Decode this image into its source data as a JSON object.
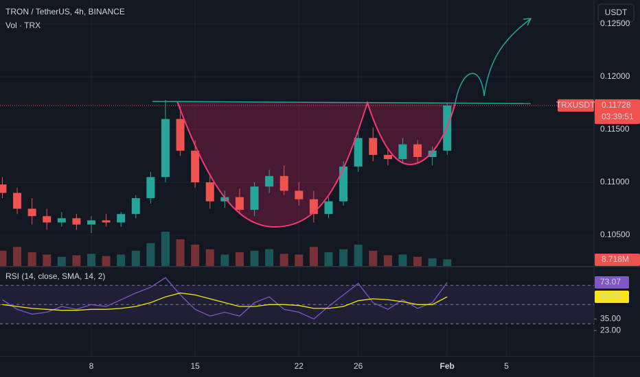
{
  "header": {
    "currency": "USDT"
  },
  "chart_data": {
    "type": "candlestick",
    "title": "TRON / TetherUS, 4h, BINANCE",
    "up_color": "#26a69a",
    "down_color": "#ef5350",
    "x": [
      2,
      3,
      4,
      5,
      6,
      7,
      8,
      9,
      10,
      11,
      12,
      13,
      14,
      15,
      16,
      17,
      18,
      19,
      20,
      21,
      22,
      23,
      24,
      25,
      26,
      27,
      28,
      29,
      30,
      31,
      32
    ],
    "open": [
      0.1098,
      0.109,
      0.1075,
      0.1068,
      0.1062,
      0.1066,
      0.106,
      0.1064,
      0.1062,
      0.107,
      0.1085,
      0.1105,
      0.116,
      0.113,
      0.11,
      0.1082,
      0.1086,
      0.1074,
      0.1096,
      0.1106,
      0.1092,
      0.1084,
      0.107,
      0.1082,
      0.1115,
      0.1142,
      0.1126,
      0.1122,
      0.1136,
      0.1124,
      0.113
    ],
    "high": [
      0.1105,
      0.1095,
      0.1085,
      0.1075,
      0.1072,
      0.107,
      0.1068,
      0.107,
      0.1072,
      0.1088,
      0.111,
      0.1178,
      0.1172,
      0.114,
      0.1108,
      0.1092,
      0.1094,
      0.11,
      0.1112,
      0.1116,
      0.11,
      0.1092,
      0.1086,
      0.112,
      0.115,
      0.1152,
      0.1132,
      0.1142,
      0.114,
      0.1134,
      0.1175
    ],
    "low": [
      0.1085,
      0.107,
      0.106,
      0.1055,
      0.1058,
      0.1055,
      0.1052,
      0.1058,
      0.1058,
      0.1066,
      0.108,
      0.11,
      0.1125,
      0.1095,
      0.1075,
      0.1076,
      0.107,
      0.1068,
      0.109,
      0.1088,
      0.1078,
      0.1062,
      0.1066,
      0.1078,
      0.111,
      0.112,
      0.1116,
      0.1118,
      0.1118,
      0.1116,
      0.1126
    ],
    "close": [
      0.109,
      0.1075,
      0.1068,
      0.1062,
      0.1066,
      0.106,
      0.1064,
      0.1062,
      0.107,
      0.1085,
      0.1105,
      0.116,
      0.113,
      0.11,
      0.1082,
      0.1086,
      0.1074,
      0.1096,
      0.1106,
      0.1092,
      0.1084,
      0.107,
      0.1082,
      0.1115,
      0.1142,
      0.1126,
      0.1122,
      0.1136,
      0.1124,
      0.113,
      0.11728
    ],
    "xlim": [
      1.84,
      41.9
    ],
    "xticks": [
      8,
      15,
      22,
      26,
      {
        "value": 32,
        "label": "Feb"
      },
      {
        "value": 36,
        "label": "5"
      }
    ],
    "ylim": [
      0.10208,
      0.12727
    ],
    "yticks": [
      {
        "value": 0.125,
        "label": "0.12500"
      },
      {
        "value": 0.12,
        "label": "0.12000"
      },
      {
        "value": 0.115,
        "label": "0.11500"
      },
      {
        "value": 0.11,
        "label": "0.11000"
      },
      {
        "value": 0.105,
        "label": "0.10500"
      }
    ],
    "grid": true,
    "price_tag": {
      "symbol": "TRXUSDT",
      "countdown": "03:39:51"
    },
    "volume": {
      "title": "Vol · TRX",
      "values": [
        20,
        25,
        18,
        15,
        12,
        14,
        16,
        13,
        15,
        20,
        30,
        45,
        35,
        28,
        22,
        15,
        18,
        20,
        22,
        16,
        15,
        25,
        18,
        22,
        28,
        20,
        14,
        15,
        12,
        10,
        8.718
      ],
      "last_label": "8.718M"
    },
    "rsi": {
      "title": "RSI (14, close, SMA, 14, 2)",
      "ylim": [
        -4,
        87.3
      ],
      "yticks": [
        {
          "value": 35,
          "label": "35.00"
        },
        {
          "value": 23,
          "label": "23.00"
        }
      ],
      "bands": [
        70,
        50,
        30
      ],
      "series": [
        {
          "color": "#7e57c2",
          "values": [
            55,
            45,
            40,
            42,
            48,
            45,
            50,
            48,
            55,
            62,
            68,
            78,
            60,
            45,
            38,
            42,
            38,
            52,
            58,
            45,
            42,
            35,
            48,
            60,
            72,
            52,
            45,
            55,
            46,
            52,
            73.07
          ]
        },
        {
          "color": "#f7e41b",
          "values": [
            50,
            48,
            46,
            45,
            44,
            44,
            45,
            45,
            46,
            48,
            52,
            58,
            62,
            60,
            56,
            52,
            48,
            48,
            50,
            50,
            49,
            46,
            46,
            48,
            54,
            56,
            55,
            53,
            50,
            50,
            58.05
          ]
        }
      ]
    }
  }
}
